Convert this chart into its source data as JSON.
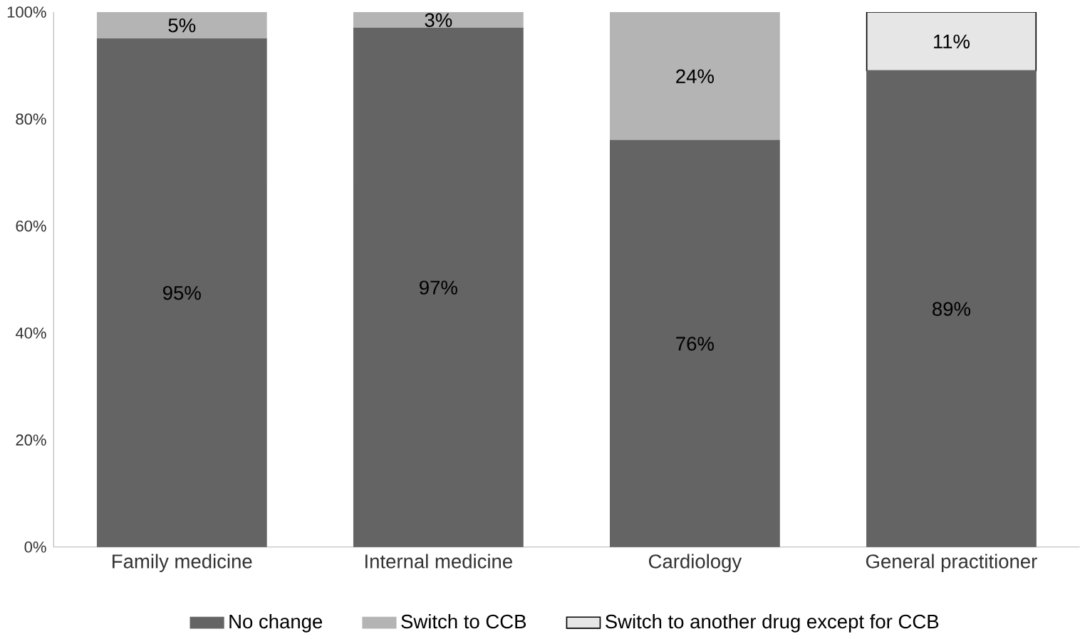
{
  "chart_data": {
    "type": "bar",
    "stacked": true,
    "categories": [
      "Family medicine",
      "Internal medicine",
      "Cardiology",
      "General practitioner"
    ],
    "series": [
      {
        "name": "No change",
        "color": "#646464",
        "values": [
          95,
          97,
          76,
          89
        ],
        "value_labels": [
          "95%",
          "97%",
          "76%",
          "89%"
        ]
      },
      {
        "name": "Switch to CCB",
        "color": "#b4b4b4",
        "values": [
          5,
          3,
          24,
          0
        ],
        "value_labels": [
          "5%",
          "3%",
          "24%",
          null
        ]
      },
      {
        "name": "Switch to another drug except for CCB",
        "color": "#e6e6e6",
        "values": [
          0,
          0,
          0,
          11
        ],
        "value_labels": [
          null,
          null,
          null,
          "11%"
        ]
      }
    ],
    "ylim": [
      0,
      100
    ],
    "yticks": [
      {
        "value": 0,
        "label": "0%"
      },
      {
        "value": 20,
        "label": "20%"
      },
      {
        "value": 40,
        "label": "40%"
      },
      {
        "value": 60,
        "label": "60%"
      },
      {
        "value": 80,
        "label": "80%"
      },
      {
        "value": 100,
        "label": "100%"
      }
    ],
    "grid": false,
    "legend": "bottom"
  }
}
